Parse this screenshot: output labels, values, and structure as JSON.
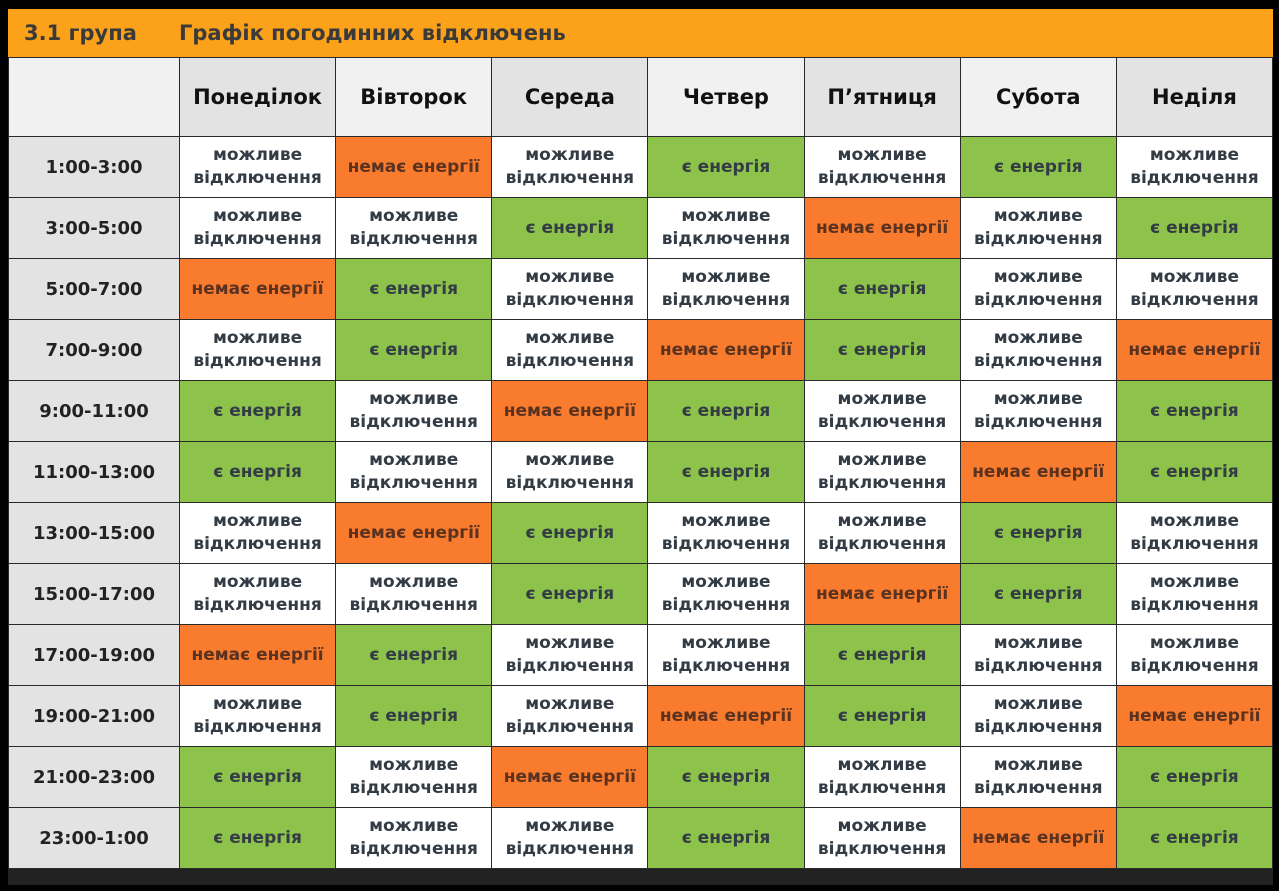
{
  "header": {
    "group": "3.1 група",
    "title": "Графік погодинних відключень"
  },
  "days": [
    "Понеділок",
    "Вівторок",
    "Середа",
    "Четвер",
    "П’ятниця",
    "Субота",
    "Неділя"
  ],
  "statuses": {
    "M": {
      "label": "можливе відключення",
      "color": "#ffffff"
    },
    "N": {
      "label": "немає енергії",
      "color": "#f97b2e"
    },
    "E": {
      "label": "є енергія",
      "color": "#8dc34a"
    }
  },
  "colors": {
    "header_bar": "#fba11a"
  },
  "rows": [
    {
      "time": "1:00-3:00",
      "cells": [
        "M",
        "N",
        "M",
        "E",
        "M",
        "E",
        "M"
      ]
    },
    {
      "time": "3:00-5:00",
      "cells": [
        "M",
        "M",
        "E",
        "M",
        "N",
        "M",
        "E"
      ]
    },
    {
      "time": "5:00-7:00",
      "cells": [
        "N",
        "E",
        "M",
        "M",
        "E",
        "M",
        "M"
      ]
    },
    {
      "time": "7:00-9:00",
      "cells": [
        "M",
        "E",
        "M",
        "N",
        "E",
        "M",
        "N"
      ]
    },
    {
      "time": "9:00-11:00",
      "cells": [
        "E",
        "M",
        "N",
        "E",
        "M",
        "M",
        "E"
      ]
    },
    {
      "time": "11:00-13:00",
      "cells": [
        "E",
        "M",
        "M",
        "E",
        "M",
        "N",
        "E"
      ]
    },
    {
      "time": "13:00-15:00",
      "cells": [
        "M",
        "N",
        "E",
        "M",
        "M",
        "E",
        "M"
      ]
    },
    {
      "time": "15:00-17:00",
      "cells": [
        "M",
        "M",
        "E",
        "M",
        "N",
        "E",
        "M"
      ]
    },
    {
      "time": "17:00-19:00",
      "cells": [
        "N",
        "E",
        "M",
        "M",
        "E",
        "M",
        "M"
      ]
    },
    {
      "time": "19:00-21:00",
      "cells": [
        "M",
        "E",
        "M",
        "N",
        "E",
        "M",
        "N"
      ]
    },
    {
      "time": "21:00-23:00",
      "cells": [
        "E",
        "M",
        "N",
        "E",
        "M",
        "M",
        "E"
      ]
    },
    {
      "time": "23:00-1:00",
      "cells": [
        "E",
        "M",
        "M",
        "E",
        "M",
        "N",
        "E"
      ]
    }
  ]
}
